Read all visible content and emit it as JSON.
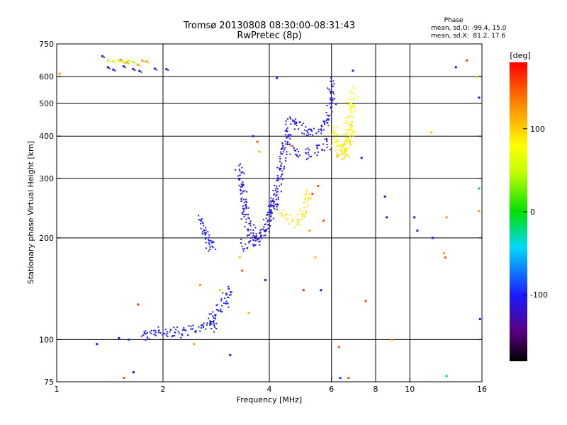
{
  "chart_data": {
    "type": "scatter",
    "title": "Tromsø 20130808 08:30:00-08:31:43",
    "subtitle": "RwPretec (8p)",
    "xlabel": "Frequency [MHz]",
    "ylabel": "Stationary phase Virtual Height [km]",
    "x_scale": "log",
    "y_scale": "log",
    "xlim": [
      1,
      16
    ],
    "ylim": [
      75,
      750
    ],
    "x_ticks": [
      1,
      2,
      4,
      6,
      8,
      10,
      16
    ],
    "x_tick_labels": [
      "1",
      "2",
      "4",
      "6",
      "8",
      "10",
      "16"
    ],
    "x_grid": [
      2,
      4,
      6,
      8,
      10
    ],
    "y_ticks": [
      75,
      100,
      200,
      300,
      400,
      500,
      600,
      750
    ],
    "y_tick_labels": [
      "75",
      "100",
      "200",
      "300",
      "400",
      "500",
      "600",
      "750"
    ],
    "y_grid": [
      100,
      200,
      300,
      400,
      500,
      600
    ],
    "grid": true,
    "stats": {
      "heading": "Phase",
      "line_o": "mean, sd,O: -99.4, 15.0",
      "line_x": "mean, sd,X:  81.2, 17.6"
    },
    "colorbar": {
      "label": "[deg]",
      "range": [
        -180,
        180
      ],
      "ticks": [
        100,
        0,
        -100
      ],
      "tick_labels": [
        "100",
        "0",
        "-100"
      ]
    },
    "traces": [
      {
        "kind": "line",
        "phase": -100,
        "x": [
          1.75,
          1.8,
          1.9,
          2.0,
          2.1,
          2.2,
          2.35,
          2.5,
          2.6,
          2.7,
          2.75,
          2.8
        ],
        "y": [
          102,
          104,
          105,
          104,
          105,
          104,
          106,
          108,
          110,
          112,
          110,
          109
        ]
      },
      {
        "kind": "line",
        "phase": -100,
        "x": [
          2.7,
          2.8,
          2.9,
          3.0,
          3.05,
          3.1,
          3.15
        ],
        "y": [
          112,
          118,
          124,
          130,
          137,
          140,
          138
        ]
      },
      {
        "kind": "line",
        "phase": -100,
        "x": [
          2.55,
          2.6,
          2.65,
          2.7,
          2.75,
          2.8
        ],
        "y": [
          232,
          220,
          205,
          194,
          190,
          190
        ]
      },
      {
        "kind": "line",
        "phase": -110,
        "x": [
          3.3,
          3.35,
          3.4,
          3.5,
          3.6,
          3.7,
          3.8,
          3.9,
          4.0,
          4.1,
          4.2
        ],
        "y": [
          320,
          275,
          240,
          215,
          200,
          198,
          203,
          210,
          225,
          245,
          265
        ]
      },
      {
        "kind": "line",
        "phase": -110,
        "x": [
          3.35,
          3.45,
          3.55,
          3.7,
          3.85,
          4.0
        ],
        "y": [
          190,
          188,
          192,
          200,
          210,
          218
        ]
      },
      {
        "kind": "line",
        "phase": -105,
        "x": [
          4.0,
          4.1,
          4.2,
          4.3,
          4.4,
          4.5,
          4.7,
          4.9,
          5.1,
          5.3,
          5.5,
          5.7,
          5.9,
          6.0,
          6.05
        ],
        "y": [
          235,
          255,
          280,
          310,
          360,
          420,
          440,
          430,
          415,
          405,
          410,
          430,
          470,
          520,
          590
        ]
      },
      {
        "kind": "line",
        "phase": -110,
        "x": [
          4.5,
          4.7,
          4.9,
          5.1,
          5.3,
          5.5,
          5.7,
          5.9
        ],
        "y": [
          375,
          360,
          355,
          352,
          358,
          365,
          375,
          385
        ]
      },
      {
        "kind": "line",
        "phase": 90,
        "x": [
          4.4,
          4.55,
          4.7,
          4.85,
          5.0,
          5.1,
          5.2
        ],
        "y": [
          240,
          228,
          222,
          225,
          235,
          255,
          275
        ]
      },
      {
        "kind": "line",
        "phase": 80,
        "x": [
          6.0,
          6.15,
          6.3,
          6.45,
          6.6,
          6.75,
          6.85,
          6.9
        ],
        "y": [
          420,
          395,
          370,
          358,
          365,
          400,
          470,
          560
        ]
      },
      {
        "kind": "line",
        "phase": 95,
        "x": [
          6.2,
          6.35,
          6.5,
          6.65,
          6.8
        ],
        "y": [
          360,
          350,
          355,
          385,
          440
        ]
      },
      {
        "kind": "points",
        "phase": 50,
        "x": [
          1.4,
          1.45,
          1.5,
          1.55,
          1.6,
          1.65
        ],
        "y": [
          668,
          665,
          668,
          660,
          668,
          662
        ]
      },
      {
        "kind": "points",
        "phase": 120,
        "x": [
          1.52,
          1.58,
          1.7,
          1.75,
          1.8
        ],
        "y": [
          672,
          660,
          650,
          668,
          664
        ]
      },
      {
        "kind": "points",
        "phase": -110,
        "x": [
          1.35,
          1.4,
          1.45,
          1.55,
          1.65,
          1.72,
          1.9,
          2.05
        ],
        "y": [
          688,
          638,
          628,
          642,
          630,
          622,
          632,
          630
        ]
      }
    ],
    "scatter_points": [
      {
        "x": 1.02,
        "y": 612,
        "phase": 120
      },
      {
        "x": 1.3,
        "y": 97,
        "phase": -100
      },
      {
        "x": 1.5,
        "y": 101,
        "phase": -100
      },
      {
        "x": 1.55,
        "y": 77,
        "phase": 150
      },
      {
        "x": 1.6,
        "y": 100,
        "phase": -90
      },
      {
        "x": 1.65,
        "y": 80,
        "phase": -120
      },
      {
        "x": 1.7,
        "y": 127,
        "phase": 160
      },
      {
        "x": 2.45,
        "y": 97,
        "phase": 120
      },
      {
        "x": 2.55,
        "y": 145,
        "phase": 120
      },
      {
        "x": 2.9,
        "y": 140,
        "phase": 40
      },
      {
        "x": 3.1,
        "y": 90,
        "phase": -110
      },
      {
        "x": 3.3,
        "y": 175,
        "phase": 40
      },
      {
        "x": 3.35,
        "y": 160,
        "phase": 150
      },
      {
        "x": 3.5,
        "y": 120,
        "phase": 110
      },
      {
        "x": 3.6,
        "y": 400,
        "phase": -100
      },
      {
        "x": 3.7,
        "y": 385,
        "phase": 150
      },
      {
        "x": 3.75,
        "y": 360,
        "phase": 110
      },
      {
        "x": 3.9,
        "y": 150,
        "phase": -100
      },
      {
        "x": 4.2,
        "y": 595,
        "phase": -100
      },
      {
        "x": 4.6,
        "y": 375,
        "phase": 120
      },
      {
        "x": 5.0,
        "y": 140,
        "phase": 160
      },
      {
        "x": 5.2,
        "y": 210,
        "phase": 120
      },
      {
        "x": 5.3,
        "y": 270,
        "phase": 150
      },
      {
        "x": 5.4,
        "y": 175,
        "phase": 110
      },
      {
        "x": 5.5,
        "y": 285,
        "phase": 150
      },
      {
        "x": 5.6,
        "y": 140,
        "phase": -110
      },
      {
        "x": 5.7,
        "y": 225,
        "phase": 150
      },
      {
        "x": 6.3,
        "y": 95,
        "phase": 150
      },
      {
        "x": 6.35,
        "y": 77,
        "phase": -90
      },
      {
        "x": 6.7,
        "y": 77,
        "phase": 150
      },
      {
        "x": 6.9,
        "y": 625,
        "phase": -100
      },
      {
        "x": 7.3,
        "y": 345,
        "phase": -100
      },
      {
        "x": 7.5,
        "y": 130,
        "phase": 150
      },
      {
        "x": 8.5,
        "y": 265,
        "phase": -100
      },
      {
        "x": 8.6,
        "y": 230,
        "phase": -110
      },
      {
        "x": 8.9,
        "y": 100,
        "phase": 120
      },
      {
        "x": 10.3,
        "y": 230,
        "phase": -110
      },
      {
        "x": 10.5,
        "y": 210,
        "phase": -100
      },
      {
        "x": 11.5,
        "y": 410,
        "phase": 100
      },
      {
        "x": 11.6,
        "y": 200,
        "phase": -100
      },
      {
        "x": 12.5,
        "y": 180,
        "phase": 120
      },
      {
        "x": 12.6,
        "y": 175,
        "phase": 150
      },
      {
        "x": 12.7,
        "y": 230,
        "phase": 120
      },
      {
        "x": 12.7,
        "y": 78,
        "phase": -10
      },
      {
        "x": 13.5,
        "y": 640,
        "phase": -100
      },
      {
        "x": 14.5,
        "y": 670,
        "phase": 160
      },
      {
        "x": 15.5,
        "y": 600,
        "phase": 40
      },
      {
        "x": 15.7,
        "y": 520,
        "phase": -100
      },
      {
        "x": 15.7,
        "y": 280,
        "phase": -10
      },
      {
        "x": 15.7,
        "y": 240,
        "phase": 120
      },
      {
        "x": 15.8,
        "y": 115,
        "phase": -100
      }
    ]
  }
}
